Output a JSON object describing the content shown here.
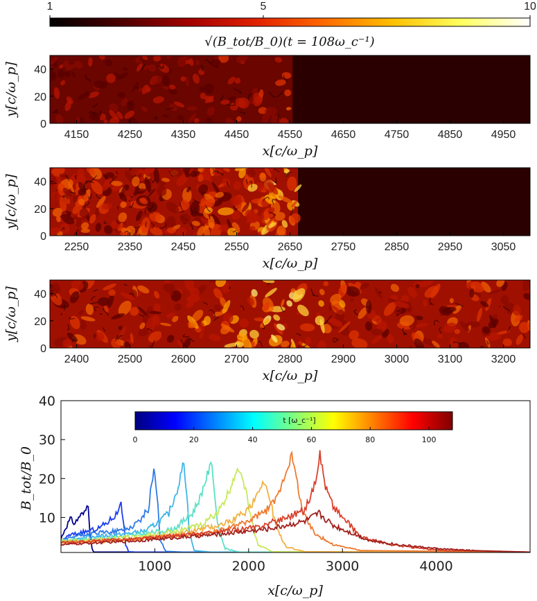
{
  "top_colorbar": {
    "ticks": [
      "1",
      "5",
      "10"
    ],
    "tick_values": [
      1,
      5,
      10
    ],
    "range": [
      1,
      10
    ],
    "title": "√(B_tot/B_0)(t = 108ω_c⁻¹)",
    "colormap": [
      "#000000",
      "#4a0000",
      "#a00000",
      "#e02000",
      "#ff6a00",
      "#ffc000",
      "#ffff60",
      "#ffffff"
    ]
  },
  "panels": [
    {
      "id": "panel-1",
      "xlabel": "x[c/ω_p]",
      "ylabel": "y[c/ω_p]",
      "xlim": [
        4100,
        5000
      ],
      "ylim": [
        0,
        50
      ],
      "xticks": [
        4150,
        4250,
        4350,
        4450,
        4550,
        4650,
        4750,
        4850,
        4950
      ],
      "yticks": [
        0,
        20,
        40
      ],
      "front_x": 4555,
      "upstream_color": "#2a0000",
      "turbulence_level": "weak"
    },
    {
      "id": "panel-2",
      "xlabel": "x[c/ω_p]",
      "ylabel": "y[c/ω_p]",
      "xlim": [
        2200,
        3100
      ],
      "ylim": [
        0,
        50
      ],
      "xticks": [
        2250,
        2350,
        2450,
        2550,
        2650,
        2750,
        2850,
        2950,
        3050
      ],
      "yticks": [
        0,
        20,
        40
      ],
      "front_x": 2665,
      "upstream_color": "#2a0000",
      "turbulence_level": "strong"
    },
    {
      "id": "panel-3",
      "xlabel": "x[c/ω_p]",
      "ylabel": "y[c/ω_p]",
      "xlim": [
        2350,
        3250
      ],
      "ylim": [
        0,
        50
      ],
      "xticks": [
        2400,
        2500,
        2600,
        2700,
        2800,
        2900,
        3000,
        3100,
        3200
      ],
      "yticks": [
        0,
        20,
        40
      ],
      "front_x": 2780,
      "upstream_color": null,
      "turbulence_level": "strong"
    }
  ],
  "chart_data": {
    "type": "line",
    "title": "",
    "xlabel": "x[c/ω_p]",
    "ylabel": "B_tot/B_0",
    "xlim": [
      0,
      5000
    ],
    "ylim": [
      1,
      40
    ],
    "xticks": [
      1000,
      2000,
      3000,
      4000
    ],
    "yticks": [
      10,
      20,
      30,
      40
    ],
    "colorbar": {
      "label": "t [ω_c⁻¹]",
      "ticks": [
        "0",
        "20",
        "40",
        "60",
        "80",
        "100"
      ],
      "tick_values": [
        0,
        20,
        40,
        60,
        80,
        100
      ],
      "range": [
        0,
        108
      ],
      "colormap": [
        "#00007f",
        "#0000ff",
        "#007fff",
        "#00ffff",
        "#7fff7f",
        "#ffff00",
        "#ff7f00",
        "#ff0000",
        "#7f0000"
      ]
    },
    "series": [
      {
        "t": 9,
        "color": "#00008f",
        "x": [
          0,
          50,
          100,
          150,
          200,
          250,
          290,
          310,
          330,
          350,
          400,
          500,
          5000
        ],
        "values": [
          4.5,
          7.5,
          9.5,
          8.5,
          10.5,
          11,
          13.8,
          6,
          2,
          1.1,
          1.1,
          1.1,
          1.1
        ]
      },
      {
        "t": 21,
        "color": "#1a3cf0",
        "x": [
          0,
          100,
          200,
          300,
          400,
          500,
          600,
          640,
          660,
          690,
          720,
          800,
          5000
        ],
        "values": [
          4,
          5.5,
          6,
          6.5,
          7.2,
          8.8,
          11,
          14.7,
          10,
          3,
          1.2,
          1.1,
          1.1
        ]
      },
      {
        "t": 32,
        "color": "#2e7ae6",
        "x": [
          0,
          200,
          400,
          600,
          750,
          850,
          930,
          990,
          1020,
          1060,
          1120,
          1300,
          5000
        ],
        "values": [
          4,
          5.5,
          6,
          6.5,
          7.5,
          9.5,
          12,
          22.7,
          17,
          4,
          1.3,
          1.1,
          1.1
        ]
      },
      {
        "t": 45,
        "color": "#3fb4e8",
        "x": [
          0,
          300,
          600,
          900,
          1050,
          1150,
          1250,
          1310,
          1340,
          1370,
          1420,
          1600,
          5000
        ],
        "values": [
          4,
          5,
          5.5,
          6.5,
          9,
          11,
          18,
          24.3,
          16,
          6,
          1.5,
          1.1,
          1.1
        ]
      },
      {
        "t": 55,
        "color": "#5ae0c8",
        "x": [
          0,
          400,
          800,
          1200,
          1400,
          1480,
          1560,
          1610,
          1640,
          1680,
          1750,
          1900,
          5000
        ],
        "values": [
          4,
          4.5,
          5.5,
          7,
          11,
          15,
          21,
          24.2,
          15,
          7,
          2,
          1.1,
          1.1
        ]
      },
      {
        "t": 65,
        "color": "#c8e85a",
        "x": [
          0,
          500,
          1000,
          1500,
          1700,
          1800,
          1880,
          1930,
          1980,
          2030,
          2100,
          2250,
          5000
        ],
        "values": [
          4,
          4.5,
          5.5,
          8,
          12,
          17,
          22.9,
          21,
          16,
          9,
          3,
          1.2,
          1.1
        ]
      },
      {
        "t": 76,
        "color": "#f0b040",
        "x": [
          0,
          600,
          1200,
          1700,
          1950,
          2050,
          2150,
          2200,
          2250,
          2320,
          2400,
          2600,
          5000
        ],
        "values": [
          3.5,
          4,
          5.5,
          8,
          11,
          14,
          19.3,
          17,
          12,
          6,
          2.5,
          1.2,
          1.1
        ]
      },
      {
        "t": 88,
        "color": "#ee7a30",
        "x": [
          0,
          800,
          1600,
          2000,
          2200,
          2300,
          2400,
          2460,
          2520,
          2580,
          2700,
          2900,
          3200,
          5000
        ],
        "values": [
          3.5,
          4.5,
          6,
          9,
          12,
          15,
          22,
          25.8,
          19,
          11,
          6,
          3,
          1.5,
          1.1
        ]
      },
      {
        "t": 98,
        "color": "#d8402a",
        "x": [
          0,
          800,
          1600,
          2100,
          2400,
          2600,
          2700,
          2760,
          2820,
          2900,
          3000,
          3200,
          3500,
          4000,
          5000
        ],
        "values": [
          3.5,
          4.5,
          6,
          7.5,
          10,
          12,
          18,
          26.3,
          18,
          13,
          10,
          5,
          3,
          1.6,
          1.1
        ]
      },
      {
        "t": 108,
        "color": "#a0201c",
        "x": [
          0,
          800,
          1600,
          2200,
          2600,
          2750,
          2900,
          3100,
          3300,
          3600,
          4000,
          4400,
          5000
        ],
        "values": [
          3,
          4,
          5.5,
          7,
          9,
          11,
          8,
          6,
          4,
          3,
          2,
          1.5,
          1.1
        ]
      }
    ]
  }
}
